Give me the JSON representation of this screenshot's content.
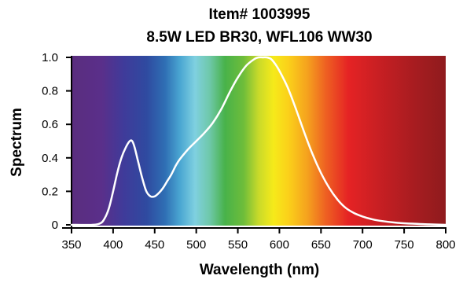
{
  "chart_data": {
    "type": "line",
    "title": "Item# 1003995",
    "subtitle": "8.5W LED BR30, WFL106 WW30",
    "xlabel": "Wavelength (nm)",
    "ylabel": "Spectrum",
    "xlim": [
      350,
      800
    ],
    "ylim": [
      0,
      1.0
    ],
    "x_ticks": [
      "350",
      "400",
      "450",
      "500",
      "550",
      "600",
      "650",
      "700",
      "750",
      "800"
    ],
    "y_ticks": [
      "0",
      "0.2",
      "0.4",
      "0.6",
      "0.8",
      "1.0"
    ],
    "grid": false,
    "legend": "none",
    "background": "visible spectrum gradient",
    "line_color": "#ffffff",
    "series": [
      {
        "x": [
          350,
          375,
          385,
          390,
          395,
          400,
          405,
          410,
          415,
          420,
          423,
          426,
          430,
          435,
          440,
          445,
          450,
          455,
          460,
          465,
          470,
          475,
          480,
          490,
          500,
          510,
          520,
          530,
          540,
          550,
          560,
          570,
          575,
          580,
          585,
          590,
          595,
          600,
          610,
          620,
          630,
          640,
          650,
          660,
          670,
          680,
          690,
          700,
          710,
          720,
          740,
          760,
          780,
          800
        ],
        "y": [
          0.0,
          0.0,
          0.01,
          0.04,
          0.1,
          0.2,
          0.31,
          0.4,
          0.46,
          0.5,
          0.5,
          0.46,
          0.38,
          0.28,
          0.2,
          0.17,
          0.17,
          0.19,
          0.22,
          0.26,
          0.3,
          0.35,
          0.39,
          0.45,
          0.5,
          0.55,
          0.61,
          0.69,
          0.79,
          0.88,
          0.95,
          0.99,
          1.0,
          1.0,
          1.0,
          0.99,
          0.96,
          0.92,
          0.82,
          0.69,
          0.55,
          0.42,
          0.31,
          0.22,
          0.15,
          0.1,
          0.07,
          0.05,
          0.035,
          0.025,
          0.013,
          0.007,
          0.003,
          0.0
        ]
      }
    ]
  }
}
